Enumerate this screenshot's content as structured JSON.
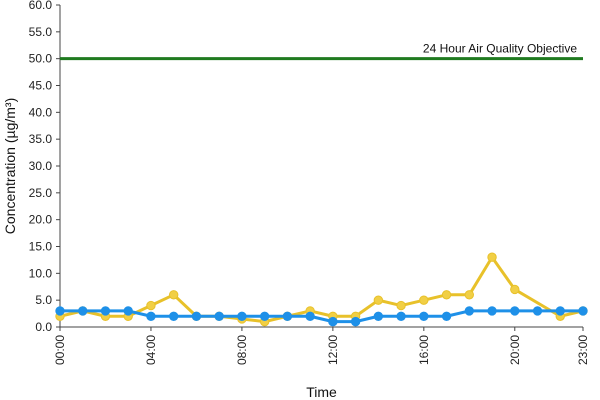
{
  "chart_data": {
    "type": "line",
    "xlabel": "Time",
    "ylabel": "Concentration (µg/m³)",
    "ylim": [
      0,
      60
    ],
    "yticks": [
      "0.0",
      "5.0",
      "10.0",
      "15.0",
      "20.0",
      "25.0",
      "30.0",
      "35.0",
      "40.0",
      "45.0",
      "50.0",
      "55.0",
      "60.0"
    ],
    "xlim": [
      0,
      23
    ],
    "xticks": [
      {
        "value": 0,
        "label": "00:00"
      },
      {
        "value": 4,
        "label": "04:00"
      },
      {
        "value": 8,
        "label": "08:00"
      },
      {
        "value": 12,
        "label": "12:00"
      },
      {
        "value": 16,
        "label": "16:00"
      },
      {
        "value": 20,
        "label": "20:00"
      },
      {
        "value": 23,
        "label": "23:00"
      }
    ],
    "grid": false,
    "legend": "none",
    "x": [
      0,
      1,
      2,
      3,
      4,
      5,
      6,
      7,
      8,
      9,
      10,
      11,
      12,
      13,
      14,
      15,
      16,
      17,
      18,
      19,
      20,
      21,
      22,
      23
    ],
    "series": [
      {
        "color": "#e8c12a",
        "marker_fill": "#f1cf45",
        "values": [
          2,
          3,
          2,
          2,
          4,
          6,
          2,
          2,
          1.5,
          1,
          2,
          3,
          2,
          2,
          5,
          4,
          5,
          6,
          6,
          13,
          7,
          null,
          2,
          3
        ]
      },
      {
        "color": "#1e90e8",
        "marker_fill": "#1e90e8",
        "values": [
          3,
          3,
          3,
          3,
          2,
          2,
          2,
          2,
          2,
          2,
          2,
          2,
          1,
          1,
          2,
          2,
          2,
          2,
          3,
          3,
          3,
          3,
          3,
          3
        ]
      }
    ],
    "reference_line": {
      "value": 50,
      "label": "24 Hour Air Quality Objective",
      "color": "#1f7a1f"
    }
  }
}
